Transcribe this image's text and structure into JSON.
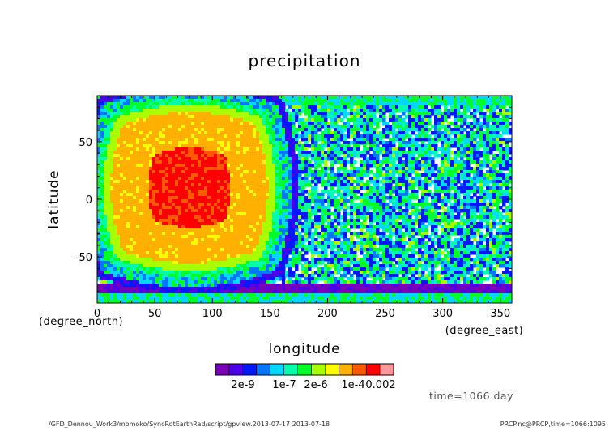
{
  "chart_data": {
    "type": "heatmap",
    "title": "precipitation",
    "xlabel": "longitude",
    "ylabel": "latitude",
    "x_unit": "(degree_east)",
    "y_unit": "(degree_north)",
    "xlim": [
      0,
      360
    ],
    "ylim": [
      -90,
      90
    ],
    "x_ticks": [
      0,
      50,
      100,
      150,
      200,
      250,
      300,
      350
    ],
    "y_ticks": [
      50,
      0,
      -50
    ],
    "grid": false,
    "colorbar": {
      "levels": 13,
      "tick_labels": [
        "2e-9",
        "1e-7",
        "2e-6",
        "1e-4",
        "0.002"
      ],
      "colors": [
        "#7a00b8",
        "#4b00e8",
        "#0018ff",
        "#0077ff",
        "#00d8ff",
        "#00ffa8",
        "#00ff28",
        "#a8ff00",
        "#ffff00",
        "#ffb000",
        "#ff5a00",
        "#ff0000",
        "#ff9999"
      ]
    },
    "fields": {
      "night_background_level": 2,
      "dayside_center_lon_lat": [
        80,
        10
      ],
      "dayside_halfwidth_deg": [
        85,
        82
      ],
      "dayside_core_level": 11,
      "dayside_mid_level": 9
    }
  },
  "info": {
    "time_label": "time=1066 day",
    "footer_left": "/GFD_Dennou_Work3/momoko/SyncRotEarthRad/script/gpview.2013-07-17  2013-07-18",
    "footer_right": "PRCP.nc@PRCP,time=1066:1095"
  }
}
